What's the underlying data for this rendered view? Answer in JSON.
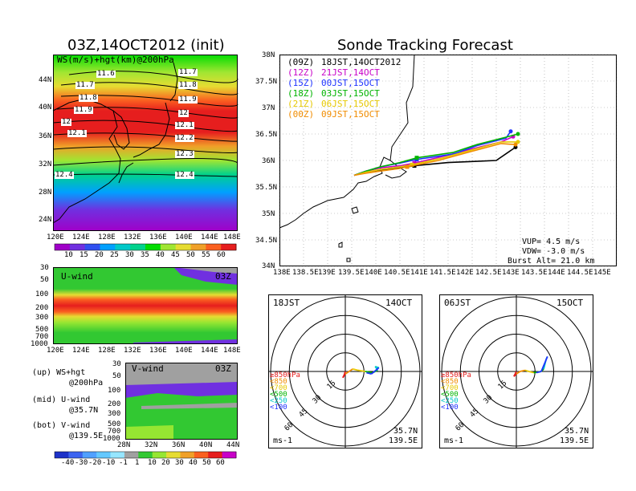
{
  "ws_panel": {
    "title": "03Z,14OCT2012 (init)",
    "subtitle": "WS(m/s)+hgt(km)@200hPa",
    "lon_ticks": [
      "120E",
      "124E",
      "128E",
      "132E",
      "136E",
      "140E",
      "144E",
      "148E"
    ],
    "lat_ticks": [
      "44N",
      "40N",
      "36N",
      "32N",
      "28N",
      "24N"
    ],
    "contour_labels": [
      "11.6",
      "11.7",
      "11.7",
      "11.8",
      "11.8",
      "11.9",
      "11.9",
      "12",
      "12",
      "12.1",
      "12.1",
      "12.2",
      "12.3",
      "12.4",
      "12.4"
    ],
    "colorbar_labels": [
      "10",
      "15",
      "20",
      "25",
      "30",
      "35",
      "40",
      "45",
      "50",
      "55",
      "60"
    ],
    "colorbar_colors": [
      "#a000c8",
      "#7030e0",
      "#3050f0",
      "#00a0ff",
      "#00c8c8",
      "#00d28c",
      "#00dc00",
      "#a0e632",
      "#e6dc32",
      "#f0a028",
      "#fa6020",
      "#e61e1e"
    ]
  },
  "u_panel": {
    "label": "U-wind",
    "time": "03Z",
    "p_ticks": [
      "30",
      "50",
      "100",
      "200",
      "300",
      "500",
      "700",
      "1000"
    ],
    "lon_ticks": [
      "120E",
      "124E",
      "128E",
      "132E",
      "136E",
      "140E",
      "144E",
      "148E"
    ]
  },
  "v_panel": {
    "label": "V-wind",
    "time": "03Z",
    "p_ticks": [
      "30",
      "50",
      "100",
      "200",
      "300",
      "500",
      "700",
      "1000"
    ],
    "lat_ticks": [
      "28N",
      "32N",
      "36N",
      "40N",
      "44N"
    ],
    "colorbar_labels": [
      "-40",
      "-30",
      "-20",
      "-10",
      "-1",
      "1",
      "10",
      "20",
      "30",
      "40",
      "50",
      "60"
    ],
    "colorbar_colors": [
      "#1e32c8",
      "#3c64f0",
      "#50a0ff",
      "#64c8ff",
      "#96e6ff",
      "#a0a0a0",
      "#32c832",
      "#96e632",
      "#e6dc32",
      "#f0a028",
      "#fa6020",
      "#e61e1e",
      "#c800c8"
    ]
  },
  "legend_notes": {
    "up_1": "(up) WS+hgt",
    "up_2": "@200hPa",
    "mid_1": "(mid) U-wind",
    "mid_2": "@35.7N",
    "bot_1": "(bot) V-wind",
    "bot_2": "@139.5E"
  },
  "sonde": {
    "title": "Sonde Tracking Forecast",
    "lat_ticks": [
      "38N",
      "37.5N",
      "37N",
      "36.5N",
      "36N",
      "35.5N",
      "35N",
      "34.5N",
      "34N"
    ],
    "lon_ticks": [
      "138E",
      "138.5E",
      "139E",
      "139.5E",
      "140E",
      "140.5E",
      "141E",
      "141.5E",
      "142E",
      "142.5E",
      "143E",
      "143.5E",
      "144E",
      "144.5E",
      "145E"
    ],
    "legend": [
      {
        "code": "(09Z)",
        "label": "18JST,14OCT2012",
        "color": "#000000"
      },
      {
        "code": "(12Z)",
        "label": "21JST,14OCT",
        "color": "#c800c8"
      },
      {
        "code": "(15Z)",
        "label": "00JST,15OCT",
        "color": "#1e32ff"
      },
      {
        "code": "(18Z)",
        "label": "03JST,15OCT",
        "color": "#00b400"
      },
      {
        "code": "(21Z)",
        "label": "06JST,15OCT",
        "color": "#e6c800"
      },
      {
        "code": "(00Z)",
        "label": "09JST,15OCT",
        "color": "#f08c00"
      }
    ],
    "params": {
      "vup": "VUP= 4.5 m/s",
      "vdw": "VDW= -3.0 m/s",
      "burst": "Burst Alt= 21.0 km"
    }
  },
  "hodo_left": {
    "time": "18JST",
    "date": "14OCT",
    "lat": "35.7N",
    "lon": "139.5E",
    "unit": "ms-1"
  },
  "hodo_right": {
    "time": "06JST",
    "date": "15OCT",
    "lat": "35.7N",
    "lon": "139.5E",
    "unit": "ms-1"
  },
  "hodo_rings": [
    "15",
    "30",
    "45",
    "60"
  ],
  "hodo_legend": [
    {
      "label": "≥850hPa",
      "color": "#e61e1e"
    },
    {
      "label": "<850",
      "color": "#f08c00"
    },
    {
      "label": "<700",
      "color": "#e6c800"
    },
    {
      "label": "<500",
      "color": "#00b400"
    },
    {
      "label": "<250",
      "color": "#00c8c8"
    },
    {
      "label": "<100",
      "color": "#1e32ff"
    }
  ],
  "chart_data": [
    {
      "type": "heatmap",
      "title": "03Z,14OCT2012 (init)",
      "subtitle": "WS(m/s)+hgt(km)@200hPa",
      "x_ticks": [
        "120E",
        "124E",
        "128E",
        "132E",
        "136E",
        "140E",
        "144E",
        "148E"
      ],
      "y_ticks": [
        "44N",
        "40N",
        "36N",
        "32N",
        "28N",
        "24N"
      ],
      "contours_km": [
        11.6,
        11.7,
        11.8,
        11.9,
        12,
        12.1,
        12.2,
        12.3,
        12.4
      ],
      "colorbar": [
        10,
        15,
        20,
        25,
        30,
        35,
        40,
        45,
        50,
        55,
        60
      ],
      "jet_core_lat": 37,
      "jet_core_max_ms": 60
    },
    {
      "type": "heatmap",
      "title": "U-wind 03Z",
      "x_ticks": [
        "120E",
        "124E",
        "128E",
        "132E",
        "136E",
        "140E",
        "144E",
        "148E"
      ],
      "y_ticks_hPa": [
        30,
        50,
        100,
        200,
        300,
        500,
        700,
        1000
      ],
      "max_level_hPa": 200
    },
    {
      "type": "heatmap",
      "title": "V-wind 03Z",
      "x_ticks": [
        "28N",
        "32N",
        "36N",
        "40N",
        "44N"
      ],
      "y_ticks_hPa": [
        30,
        50,
        100,
        200,
        300,
        500,
        700,
        1000
      ],
      "colorbar": [
        -40,
        -30,
        -20,
        -10,
        -1,
        1,
        10,
        20,
        30,
        40,
        50,
        60
      ]
    },
    {
      "type": "line",
      "title": "Sonde Tracking Forecast",
      "xlim": [
        138,
        145
      ],
      "ylim": [
        34,
        38
      ],
      "series": [
        {
          "name": "18JST,14OCT2012",
          "lon": [
            139.55,
            139.8,
            140.1,
            140.5,
            140.8,
            141.5,
            142.0,
            142.5,
            142.9
          ],
          "lat": [
            35.72,
            35.78,
            35.82,
            35.86,
            35.9,
            35.96,
            35.98,
            36.0,
            36.25
          ]
        },
        {
          "name": "21JST,14OCT",
          "lon": [
            139.55,
            139.8,
            140.1,
            140.5,
            140.8,
            141.5,
            142.0,
            142.6,
            142.85
          ],
          "lat": [
            35.72,
            35.8,
            35.86,
            35.9,
            35.95,
            36.1,
            36.22,
            36.35,
            36.45
          ]
        },
        {
          "name": "00JST,15OCT",
          "lon": [
            139.55,
            139.8,
            140.1,
            140.5,
            140.85,
            141.6,
            142.1,
            142.7,
            142.8
          ],
          "lat": [
            35.72,
            35.8,
            35.88,
            35.95,
            36.02,
            36.12,
            36.28,
            36.42,
            36.55
          ]
        },
        {
          "name": "03JST,15OCT",
          "lon": [
            139.55,
            139.8,
            140.1,
            140.5,
            140.85,
            141.6,
            142.1,
            142.7,
            142.95
          ],
          "lat": [
            35.72,
            35.8,
            35.88,
            35.96,
            36.05,
            36.15,
            36.3,
            36.44,
            36.5
          ]
        },
        {
          "name": "06JST,15OCT",
          "lon": [
            139.55,
            139.8,
            140.1,
            140.5,
            140.75,
            141.4,
            142.0,
            142.6,
            142.95
          ],
          "lat": [
            35.72,
            35.78,
            35.83,
            35.88,
            35.92,
            36.05,
            36.2,
            36.35,
            36.35
          ]
        },
        {
          "name": "09JST,15OCT",
          "lon": [
            139.55,
            139.8,
            140.1,
            140.5,
            140.65,
            141.3,
            141.9,
            142.6,
            142.9
          ],
          "lat": [
            35.72,
            35.76,
            35.8,
            35.85,
            35.88,
            36.0,
            36.15,
            36.32,
            36.3
          ]
        }
      ],
      "annotations": [
        "VUP= 4.5 m/s",
        "VDW= -3.0 m/s",
        "Burst Alt= 21.0 km"
      ]
    },
    {
      "type": "line",
      "title": "Hodograph 18JST 14OCT 35.7N 139.5E",
      "rings_ms": [
        15,
        30,
        45,
        60
      ],
      "u": [
        0,
        -1,
        -2,
        0,
        3,
        6,
        10,
        16,
        22,
        26,
        24,
        27,
        21,
        17
      ],
      "v": [
        0,
        -3,
        -5,
        -2,
        0,
        2,
        1,
        0,
        -1,
        1,
        4,
        3,
        -2,
        -1
      ]
    },
    {
      "type": "line",
      "title": "Hodograph 06JST 15OCT 35.7N 139.5E",
      "rings_ms": [
        15,
        30,
        45,
        60
      ],
      "u": [
        0,
        -1,
        -2,
        0,
        3,
        7,
        10,
        14,
        20,
        22,
        24,
        25,
        20,
        16
      ],
      "v": [
        0,
        -2,
        -4,
        -2,
        0,
        1,
        0,
        -1,
        0,
        2,
        10,
        12,
        0,
        -1
      ]
    }
  ]
}
